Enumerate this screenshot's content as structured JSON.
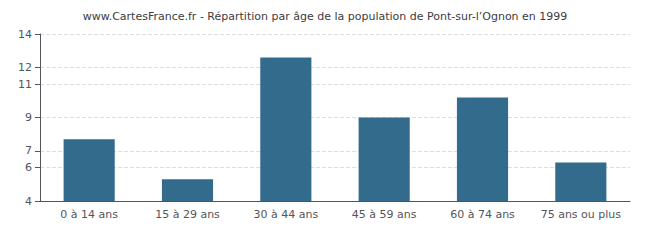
{
  "chart_data": {
    "type": "bar",
    "title": "www.CartesFrance.fr - Répartition par âge de la population de Pont-sur-l’Ognon en 1999",
    "categories": [
      "0 à 14 ans",
      "15 à 29 ans",
      "30 à 44 ans",
      "45 à 59 ans",
      "60 à 74 ans",
      "75 ans ou plus"
    ],
    "values": [
      7.7,
      5.3,
      12.6,
      9.0,
      10.2,
      6.3
    ],
    "color": "#336b8c",
    "ylim": [
      4,
      14
    ],
    "yticks": [
      4,
      6,
      7,
      9,
      11,
      12,
      14
    ],
    "grid": true
  }
}
